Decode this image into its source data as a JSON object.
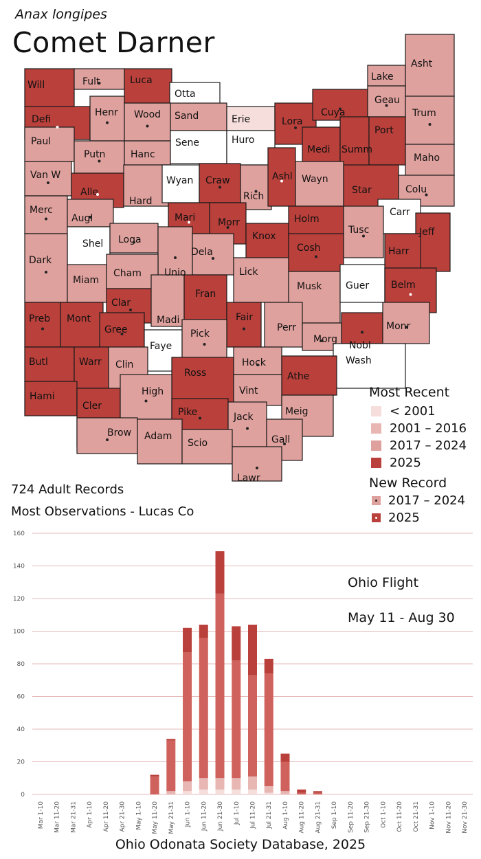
{
  "header": {
    "species": "Anax longipes",
    "common_name": "Comet Darner"
  },
  "colors": {
    "pre2001": "#f6dedd",
    "y2001_2016": "#e8b7b3",
    "y2017_2024": "#dfa19d",
    "y2025": "#b9403b",
    "none": "#ffffff"
  },
  "legend": {
    "most_recent_title": "Most Recent",
    "items": [
      {
        "key": "pre2001",
        "label": "< 2001"
      },
      {
        "key": "y2001_2016",
        "label": "2001 – 2016"
      },
      {
        "key": "y2017_2024",
        "label": "2017 – 2024"
      },
      {
        "key": "y2025",
        "label": "2025"
      }
    ],
    "new_record_title": "New Record",
    "new_items": [
      {
        "key": "y2017_2024",
        "label": "2017 – 2024"
      },
      {
        "key": "y2025",
        "label": "2025"
      }
    ]
  },
  "counties": [
    {
      "name": "Will",
      "cat": "y2025",
      "dot": ""
    },
    {
      "name": "Fult",
      "cat": "y2017_2024",
      "dot": "dark"
    },
    {
      "name": "Luca",
      "cat": "y2025",
      "dot": ""
    },
    {
      "name": "Otta",
      "cat": "none",
      "dot": ""
    },
    {
      "name": "Lake",
      "cat": "y2017_2024",
      "dot": ""
    },
    {
      "name": "Asht",
      "cat": "y2017_2024",
      "dot": ""
    },
    {
      "name": "Defi",
      "cat": "y2025",
      "dot": "light"
    },
    {
      "name": "Henr",
      "cat": "y2017_2024",
      "dot": "dark"
    },
    {
      "name": "Wood",
      "cat": "y2017_2024",
      "dot": "dark"
    },
    {
      "name": "Sand",
      "cat": "y2017_2024",
      "dot": ""
    },
    {
      "name": "Erie",
      "cat": "pre2001",
      "dot": ""
    },
    {
      "name": "Lora",
      "cat": "y2025",
      "dot": "dark"
    },
    {
      "name": "Cuya",
      "cat": "y2025",
      "dot": "dark"
    },
    {
      "name": "Geau",
      "cat": "y2017_2024",
      "dot": "dark"
    },
    {
      "name": "Trum",
      "cat": "y2017_2024",
      "dot": "dark"
    },
    {
      "name": "Paul",
      "cat": "y2017_2024",
      "dot": ""
    },
    {
      "name": "Putn",
      "cat": "y2017_2024",
      "dot": "dark"
    },
    {
      "name": "Hanc",
      "cat": "y2017_2024",
      "dot": ""
    },
    {
      "name": "Sene",
      "cat": "none",
      "dot": ""
    },
    {
      "name": "Huro",
      "cat": "none",
      "dot": ""
    },
    {
      "name": "Medi",
      "cat": "y2025",
      "dot": ""
    },
    {
      "name": "Summ",
      "cat": "y2025",
      "dot": ""
    },
    {
      "name": "Port",
      "cat": "y2025",
      "dot": ""
    },
    {
      "name": "Maho",
      "cat": "y2017_2024",
      "dot": ""
    },
    {
      "name": "Van W",
      "cat": "y2017_2024",
      "dot": "dark"
    },
    {
      "name": "Alle",
      "cat": "y2025",
      "dot": "light"
    },
    {
      "name": "Hard",
      "cat": "y2017_2024",
      "dot": ""
    },
    {
      "name": "Wyan",
      "cat": "none",
      "dot": ""
    },
    {
      "name": "Craw",
      "cat": "y2025",
      "dot": "dark"
    },
    {
      "name": "Rich",
      "cat": "y2017_2024",
      "dot": "dark"
    },
    {
      "name": "Ashl",
      "cat": "y2025",
      "dot": "light"
    },
    {
      "name": "Wayn",
      "cat": "y2017_2024",
      "dot": ""
    },
    {
      "name": "Star",
      "cat": "y2025",
      "dot": ""
    },
    {
      "name": "Colu",
      "cat": "y2017_2024",
      "dot": "dark"
    },
    {
      "name": "Merc",
      "cat": "y2017_2024",
      "dot": "dark"
    },
    {
      "name": "Augl",
      "cat": "y2017_2024",
      "dot": "dark"
    },
    {
      "name": "Mari",
      "cat": "y2025",
      "dot": "light"
    },
    {
      "name": "Morr",
      "cat": "y2025",
      "dot": "dark"
    },
    {
      "name": "Knox",
      "cat": "y2025",
      "dot": ""
    },
    {
      "name": "Holm",
      "cat": "y2025",
      "dot": ""
    },
    {
      "name": "Carr",
      "cat": "none",
      "dot": ""
    },
    {
      "name": "Tusc",
      "cat": "y2017_2024",
      "dot": "dark"
    },
    {
      "name": "Jeff",
      "cat": "y2025",
      "dot": ""
    },
    {
      "name": "Shel",
      "cat": "none",
      "dot": ""
    },
    {
      "name": "Loga",
      "cat": "y2017_2024",
      "dot": "dark"
    },
    {
      "name": "Unio",
      "cat": "y2017_2024",
      "dot": "dark"
    },
    {
      "name": "Dela",
      "cat": "y2017_2024",
      "dot": "dark"
    },
    {
      "name": "Lick",
      "cat": "y2017_2024",
      "dot": ""
    },
    {
      "name": "Cosh",
      "cat": "y2025",
      "dot": "dark"
    },
    {
      "name": "Harr",
      "cat": "y2025",
      "dot": ""
    },
    {
      "name": "Dark",
      "cat": "y2017_2024",
      "dot": "dark"
    },
    {
      "name": "Miam",
      "cat": "y2017_2024",
      "dot": ""
    },
    {
      "name": "Cham",
      "cat": "y2017_2024",
      "dot": ""
    },
    {
      "name": "Musk",
      "cat": "y2017_2024",
      "dot": ""
    },
    {
      "name": "Guer",
      "cat": "none",
      "dot": ""
    },
    {
      "name": "Belm",
      "cat": "y2025",
      "dot": "light"
    },
    {
      "name": "Clar",
      "cat": "y2025",
      "dot": "dark"
    },
    {
      "name": "Madi",
      "cat": "y2017_2024",
      "dot": ""
    },
    {
      "name": "Fran",
      "cat": "y2025",
      "dot": ""
    },
    {
      "name": "Fair",
      "cat": "y2025",
      "dot": "dark"
    },
    {
      "name": "Perr",
      "cat": "y2017_2024",
      "dot": ""
    },
    {
      "name": "Nobl",
      "cat": "y2025",
      "dot": "dark"
    },
    {
      "name": "Monr",
      "cat": "y2017_2024",
      "dot": "dark"
    },
    {
      "name": "Preb",
      "cat": "y2025",
      "dot": "dark"
    },
    {
      "name": "Mont",
      "cat": "y2025",
      "dot": ""
    },
    {
      "name": "Gree",
      "cat": "y2025",
      "dot": "dark"
    },
    {
      "name": "Faye",
      "cat": "none",
      "dot": ""
    },
    {
      "name": "Pick",
      "cat": "y2017_2024",
      "dot": "dark"
    },
    {
      "name": "Morg",
      "cat": "y2017_2024",
      "dot": "dark"
    },
    {
      "name": "Wash",
      "cat": "none",
      "dot": ""
    },
    {
      "name": "Butl",
      "cat": "y2025",
      "dot": ""
    },
    {
      "name": "Warr",
      "cat": "y2025",
      "dot": ""
    },
    {
      "name": "Clin",
      "cat": "y2017_2024",
      "dot": ""
    },
    {
      "name": "Ross",
      "cat": "y2025",
      "dot": ""
    },
    {
      "name": "Hock",
      "cat": "y2017_2024",
      "dot": "dark"
    },
    {
      "name": "Athe",
      "cat": "y2025",
      "dot": ""
    },
    {
      "name": "Hami",
      "cat": "y2025",
      "dot": ""
    },
    {
      "name": "Cler",
      "cat": "y2025",
      "dot": ""
    },
    {
      "name": "High",
      "cat": "y2017_2024",
      "dot": "dark"
    },
    {
      "name": "Vint",
      "cat": "y2017_2024",
      "dot": ""
    },
    {
      "name": "Meig",
      "cat": "y2017_2024",
      "dot": ""
    },
    {
      "name": "Pike",
      "cat": "y2025",
      "dot": "dark"
    },
    {
      "name": "Jack",
      "cat": "y2017_2024",
      "dot": "dark"
    },
    {
      "name": "Brow",
      "cat": "y2017_2024",
      "dot": "dark"
    },
    {
      "name": "Adam",
      "cat": "y2017_2024",
      "dot": ""
    },
    {
      "name": "Scio",
      "cat": "y2017_2024",
      "dot": ""
    },
    {
      "name": "Gall",
      "cat": "y2017_2024",
      "dot": "dark"
    },
    {
      "name": "Lawr",
      "cat": "y2017_2024",
      "dot": "dark"
    }
  ],
  "stats": {
    "records": "724 Adult Records",
    "most_obs": "Most Observations - Lucas Co"
  },
  "chart_data": {
    "type": "bar",
    "stacked": true,
    "ylim": [
      0,
      160
    ],
    "yticks": [
      0,
      20,
      40,
      60,
      80,
      100,
      120,
      140,
      160
    ],
    "categories": [
      "Mar 1-10",
      "Mar 11-20",
      "Mar 21-31",
      "Apr 1-10",
      "Apr 11-20",
      "Apr 21-30",
      "May 1-10",
      "May 11-20",
      "May 21-31",
      "Jun 1-10",
      "Jun 11-20",
      "Jun 21-30",
      "Jul 1-10",
      "Jul 11-20",
      "Jul 21-31",
      "Aug 1-10",
      "Aug 11-20",
      "Aug 21-31",
      "Sep 1-10",
      "Sep 11-20",
      "Sep 21-30",
      "Oct 1-10",
      "Oct 11-20",
      "Oct 21-31",
      "Nov 1-10",
      "Nov 11-20",
      "Nov 21-30"
    ],
    "series": [
      {
        "color_key": "pre2001",
        "values": [
          0,
          0,
          0,
          0,
          0,
          0,
          0,
          0,
          0,
          2,
          3,
          3,
          3,
          3,
          1,
          0,
          0,
          0,
          0,
          0,
          0,
          0,
          0,
          0,
          0,
          0,
          0
        ]
      },
      {
        "color_key": "y2001_2016",
        "values": [
          0,
          0,
          0,
          0,
          0,
          0,
          0,
          0,
          2,
          6,
          7,
          7,
          7,
          8,
          4,
          2,
          0,
          0,
          0,
          0,
          0,
          0,
          0,
          0,
          0,
          0,
          0
        ]
      },
      {
        "color_key": "mid",
        "values": [
          0,
          0,
          0,
          0,
          0,
          0,
          0,
          11,
          31,
          79,
          86,
          113,
          72,
          62,
          69,
          18,
          1,
          1,
          0,
          0,
          0,
          0,
          0,
          0,
          0,
          0,
          0
        ]
      },
      {
        "color_key": "y2025",
        "values": [
          0,
          0,
          0,
          0,
          0,
          0,
          0,
          1,
          1,
          15,
          8,
          26,
          21,
          31,
          9,
          5,
          2,
          1,
          0,
          0,
          0,
          0,
          0,
          0,
          0,
          0,
          0
        ]
      }
    ],
    "annotations": [
      "Ohio Flight",
      "May 11 - Aug 30"
    ]
  },
  "footer": "Ohio Odonata Society Database, 2025"
}
